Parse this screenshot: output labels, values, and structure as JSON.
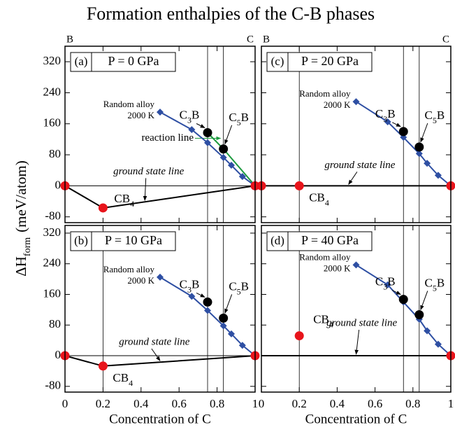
{
  "title": "Formation enthalpies of the C-B phases",
  "y_label": {
    "main": "ΔH",
    "sub": "form",
    "unit": "(meV/atom)"
  },
  "chart_data": [
    {
      "type": "line",
      "panel_id": "(a)",
      "panel_label": "P = 0 GPa",
      "corner_labels": [
        "B",
        "C"
      ],
      "xlim": [
        0,
        1
      ],
      "ylim": [
        -95,
        360
      ],
      "xticks": [
        0,
        0.2,
        0.4,
        0.6,
        0.8,
        1
      ],
      "yticks": [
        -80,
        0,
        80,
        160,
        240,
        320
      ],
      "xtick_labels": false,
      "ytick_labels": true,
      "vlines": [
        0.75,
        0.8333
      ],
      "series": [
        {
          "name_lines": [
            "Random alloy",
            "2000 K"
          ],
          "color": "#2e4fa3",
          "marker": "diamond",
          "x": [
            0.5,
            0.6667,
            0.75,
            0.8333,
            0.875,
            0.9333,
            1
          ],
          "values": [
            190,
            145,
            111,
            73,
            53,
            24,
            0
          ]
        },
        {
          "color": "#000000",
          "marker": "circle",
          "labels": [
            "C3B",
            "C5B"
          ],
          "x": [
            0.75,
            0.8333
          ],
          "values": [
            137,
            95
          ]
        }
      ],
      "ground_line": {
        "label": "ground state line",
        "x": [
          0,
          0.2,
          1
        ],
        "values": [
          0,
          -57,
          0
        ]
      },
      "stable": {
        "color": "#e8141b",
        "labels": [
          null,
          "CB4",
          null
        ],
        "x": [
          0,
          0.2,
          1
        ],
        "values": [
          0,
          -57,
          0
        ]
      },
      "reaction_line": {
        "label": "reaction line",
        "color": "#1c9a3e",
        "x": [
          0.75,
          0.8333,
          1
        ],
        "values": [
          137,
          95,
          0
        ]
      }
    },
    {
      "type": "line",
      "panel_id": "(b)",
      "panel_label": "P = 10 GPa",
      "xlabel": "Concentration of C",
      "xlim": [
        0,
        1
      ],
      "ylim": [
        -95,
        340
      ],
      "xticks": [
        0,
        0.2,
        0.4,
        0.6,
        0.8,
        1
      ],
      "yticks": [
        -80,
        0,
        80,
        160,
        240,
        320
      ],
      "xtick_labels": true,
      "ytick_labels": true,
      "vlines": [
        0.2,
        0.75,
        0.8333
      ],
      "series": [
        {
          "name_lines": [
            "Random alloy",
            "2000 K"
          ],
          "color": "#2e4fa3",
          "marker": "diamond",
          "x": [
            0.5,
            0.6667,
            0.75,
            0.8333,
            0.875,
            0.9333,
            1
          ],
          "values": [
            205,
            155,
            118,
            78,
            57,
            27,
            0
          ]
        },
        {
          "color": "#000000",
          "marker": "circle",
          "labels": [
            "C3B",
            "C5B"
          ],
          "x": [
            0.75,
            0.8333
          ],
          "values": [
            140,
            98
          ]
        }
      ],
      "ground_line": {
        "label": "ground state line",
        "x": [
          0,
          0.2,
          1
        ],
        "values": [
          0,
          -27,
          0
        ]
      },
      "stable": {
        "color": "#e8141b",
        "labels": [
          null,
          "CB4",
          null
        ],
        "x": [
          0,
          0.2,
          1
        ],
        "values": [
          0,
          -27,
          0
        ]
      }
    },
    {
      "type": "line",
      "panel_id": "(c)",
      "panel_label": "P = 20 GPa",
      "corner_labels": [
        "B",
        "C"
      ],
      "xlim": [
        0,
        1
      ],
      "ylim": [
        -95,
        360
      ],
      "xticks": [
        0,
        0.2,
        0.4,
        0.6,
        0.8,
        1
      ],
      "yticks": [
        -80,
        0,
        80,
        160,
        240,
        320
      ],
      "xtick_labels": false,
      "ytick_labels": false,
      "vlines": [
        0.2,
        0.75,
        0.8333
      ],
      "series": [
        {
          "name_lines": [
            "Random alloy",
            "2000 K"
          ],
          "color": "#2e4fa3",
          "marker": "diamond",
          "x": [
            0.5,
            0.6667,
            0.75,
            0.8333,
            0.875,
            0.9333,
            1
          ],
          "values": [
            217,
            165,
            125,
            83,
            58,
            27,
            0
          ]
        },
        {
          "color": "#000000",
          "marker": "circle",
          "labels": [
            "C3B",
            "C5B"
          ],
          "x": [
            0.75,
            0.8333
          ],
          "values": [
            140,
            100
          ]
        }
      ],
      "ground_line": {
        "label": "ground state line",
        "x": [
          0,
          1
        ],
        "values": [
          0,
          0
        ]
      },
      "stable": {
        "color": "#e8141b",
        "labels": [
          null,
          "CB4",
          null
        ],
        "x": [
          0,
          0.2,
          1
        ],
        "values": [
          0,
          0,
          0
        ]
      }
    },
    {
      "type": "line",
      "panel_id": "(d)",
      "panel_label": "P = 40 GPa",
      "xlabel": "Concentration of C",
      "xlim": [
        0,
        1
      ],
      "ylim": [
        -95,
        340
      ],
      "xticks": [
        0,
        0.2,
        0.4,
        0.6,
        0.8,
        1
      ],
      "yticks": [
        -80,
        0,
        80,
        160,
        240,
        320
      ],
      "xtick_labels": true,
      "ytick_labels": false,
      "vlines": [
        0.2,
        0.75,
        0.8333
      ],
      "series": [
        {
          "name_lines": [
            "Random alloy",
            "2000 K"
          ],
          "color": "#2e4fa3",
          "marker": "diamond",
          "x": [
            0.5,
            0.6667,
            0.75,
            0.8333,
            0.875,
            0.9333,
            1
          ],
          "values": [
            237,
            185,
            140,
            95,
            65,
            30,
            0
          ]
        },
        {
          "color": "#000000",
          "marker": "circle",
          "labels": [
            "C3B",
            "C5B"
          ],
          "x": [
            0.75,
            0.8333
          ],
          "values": [
            147,
            107
          ]
        }
      ],
      "ground_line": {
        "label": "ground state line",
        "x": [
          0,
          1
        ],
        "values": [
          0,
          0
        ]
      },
      "stable": {
        "color": "#e8141b",
        "labels": [
          "CB4",
          null
        ],
        "x": [
          0.2,
          1
        ],
        "values": [
          52,
          0
        ]
      }
    }
  ]
}
